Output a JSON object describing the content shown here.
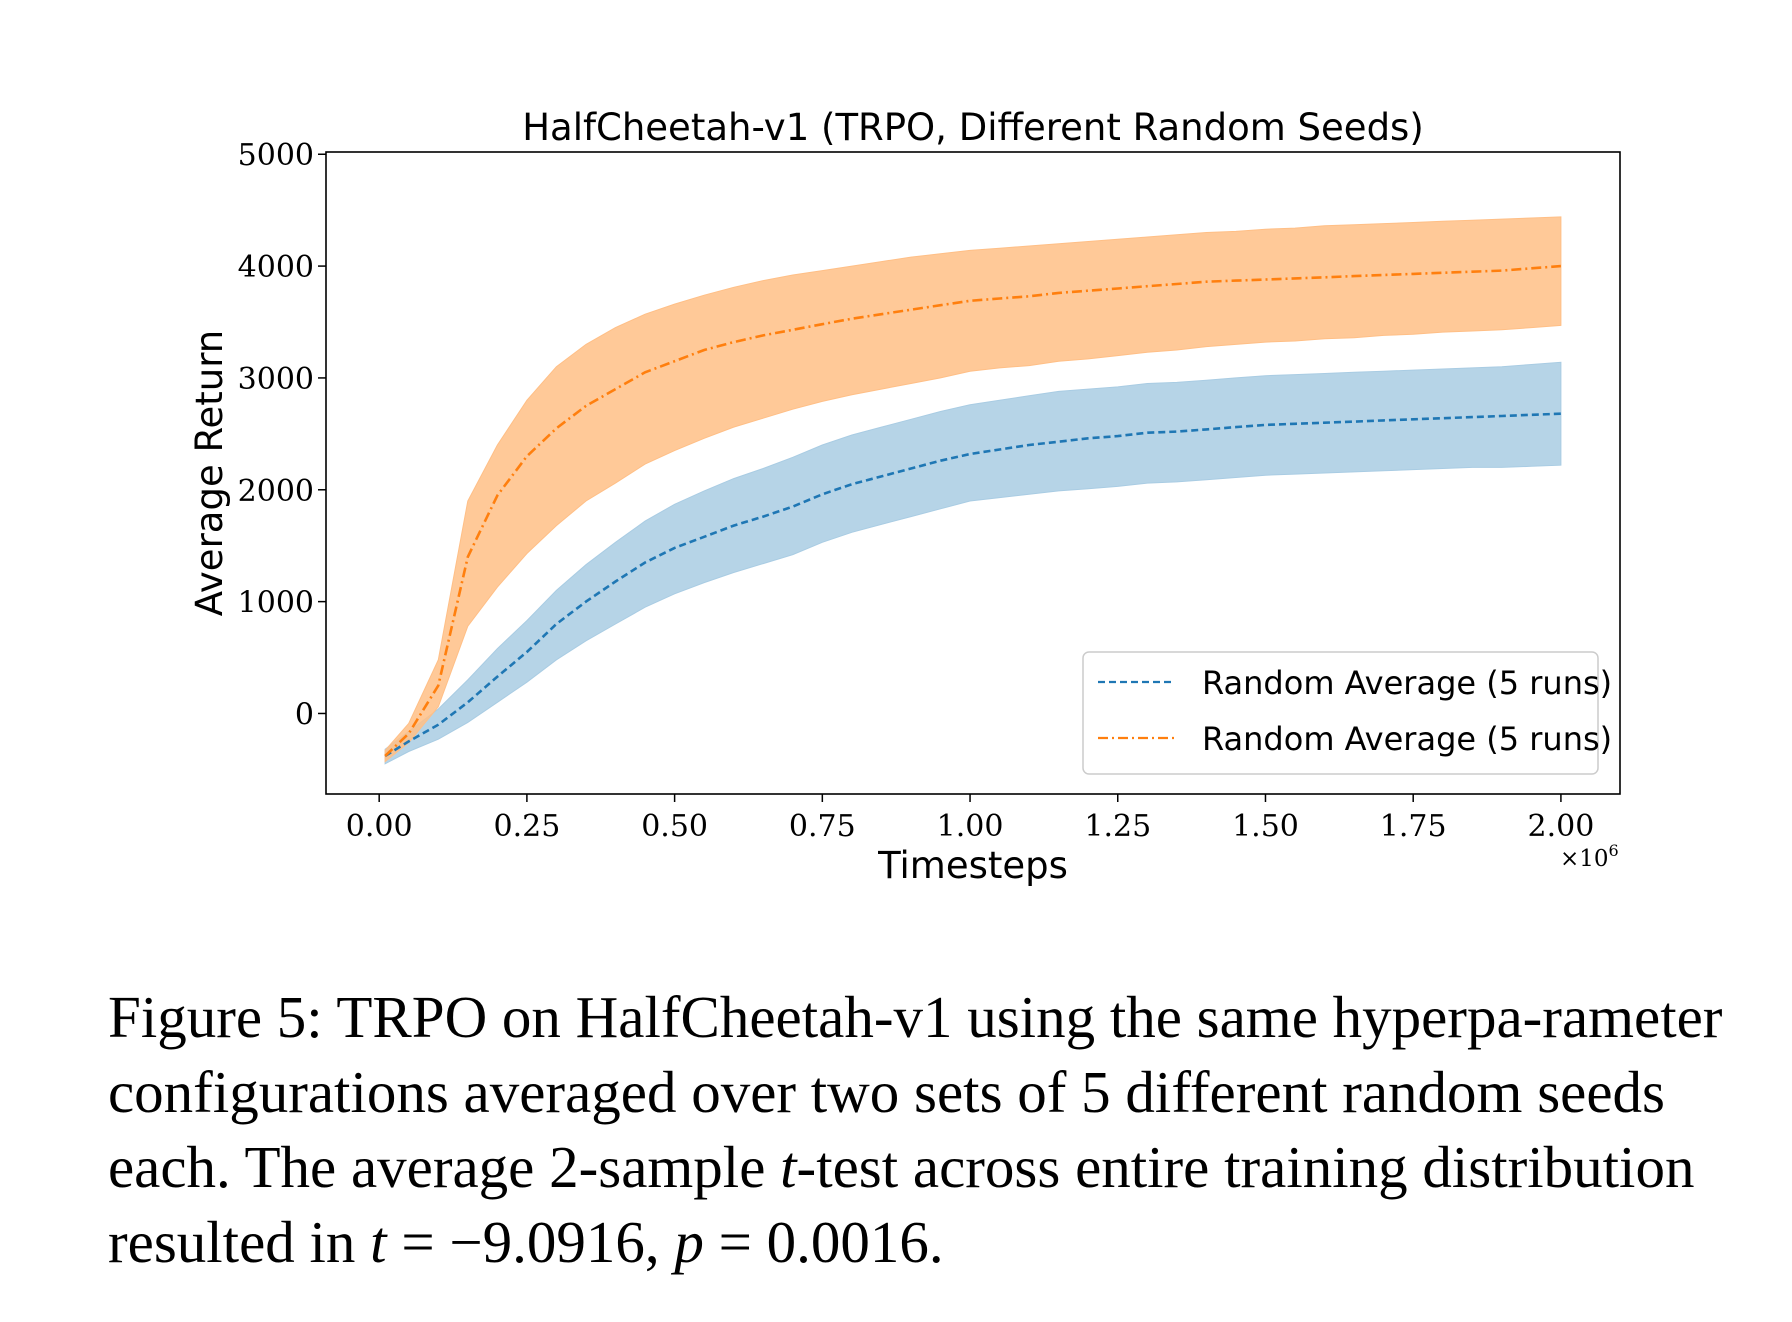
{
  "chart_data": {
    "type": "line",
    "title": "HalfCheetah-v1 (TRPO, Different Random Seeds)",
    "xlabel": "Timesteps",
    "ylabel": "Average Return",
    "x_multiplier_label": "×10",
    "x_multiplier_exp": "6",
    "xlim": [
      -0.09,
      2.1
    ],
    "ylim": [
      -720,
      5020
    ],
    "xticks": [
      0.0,
      0.25,
      0.5,
      0.75,
      1.0,
      1.25,
      1.5,
      1.75,
      2.0
    ],
    "xtick_labels": [
      "0.00",
      "0.25",
      "0.50",
      "0.75",
      "1.00",
      "1.25",
      "1.50",
      "1.75",
      "2.00"
    ],
    "yticks": [
      0,
      1000,
      2000,
      3000,
      4000,
      5000
    ],
    "ytick_labels": [
      "0",
      "1000",
      "2000",
      "3000",
      "4000",
      "5000"
    ],
    "grid": false,
    "legend_position": "lower-right",
    "x": [
      0.01,
      0.05,
      0.1,
      0.15,
      0.2,
      0.25,
      0.3,
      0.35,
      0.4,
      0.45,
      0.5,
      0.55,
      0.6,
      0.65,
      0.7,
      0.75,
      0.8,
      0.85,
      0.9,
      0.95,
      1.0,
      1.05,
      1.1,
      1.15,
      1.2,
      1.25,
      1.3,
      1.35,
      1.4,
      1.45,
      1.5,
      1.55,
      1.6,
      1.65,
      1.7,
      1.75,
      1.8,
      1.85,
      1.9,
      1.95,
      2.0
    ],
    "series": [
      {
        "name": "Random Average (5 runs)",
        "color": "#1f77b4",
        "fill_color": "#a9cce3",
        "line_style": "dashed",
        "values": [
          -380,
          -250,
          -100,
          100,
          330,
          550,
          800,
          1000,
          1180,
          1350,
          1480,
          1580,
          1680,
          1760,
          1850,
          1960,
          2050,
          2120,
          2190,
          2260,
          2320,
          2360,
          2400,
          2430,
          2460,
          2480,
          2510,
          2520,
          2540,
          2560,
          2580,
          2590,
          2600,
          2610,
          2620,
          2630,
          2640,
          2650,
          2660,
          2670,
          2680
        ],
        "lower": [
          -450,
          -340,
          -230,
          -80,
          100,
          280,
          480,
          650,
          800,
          950,
          1070,
          1170,
          1260,
          1340,
          1420,
          1530,
          1620,
          1690,
          1760,
          1830,
          1900,
          1930,
          1960,
          1990,
          2010,
          2030,
          2060,
          2070,
          2090,
          2110,
          2130,
          2140,
          2150,
          2160,
          2170,
          2180,
          2190,
          2200,
          2200,
          2210,
          2220
        ],
        "upper": [
          -320,
          -160,
          40,
          300,
          580,
          830,
          1100,
          1330,
          1530,
          1720,
          1870,
          1990,
          2100,
          2190,
          2290,
          2400,
          2490,
          2560,
          2630,
          2700,
          2760,
          2800,
          2840,
          2880,
          2900,
          2920,
          2950,
          2960,
          2980,
          3000,
          3020,
          3030,
          3040,
          3050,
          3060,
          3070,
          3080,
          3090,
          3100,
          3120,
          3140
        ]
      },
      {
        "name": "Random Average (5 runs)",
        "color": "#ff7f0e",
        "fill_color": "#ffbf86",
        "line_style": "dashdot",
        "values": [
          -380,
          -180,
          250,
          1400,
          1950,
          2300,
          2550,
          2750,
          2900,
          3050,
          3150,
          3250,
          3320,
          3380,
          3430,
          3480,
          3530,
          3570,
          3610,
          3650,
          3690,
          3710,
          3730,
          3760,
          3780,
          3800,
          3820,
          3840,
          3860,
          3870,
          3880,
          3890,
          3900,
          3910,
          3920,
          3930,
          3940,
          3950,
          3960,
          3980,
          4000
        ],
        "lower": [
          -430,
          -260,
          60,
          780,
          1130,
          1430,
          1680,
          1900,
          2060,
          2230,
          2350,
          2460,
          2560,
          2640,
          2720,
          2790,
          2850,
          2900,
          2950,
          3000,
          3060,
          3090,
          3110,
          3150,
          3170,
          3200,
          3230,
          3250,
          3280,
          3300,
          3320,
          3330,
          3350,
          3360,
          3380,
          3390,
          3410,
          3420,
          3430,
          3450,
          3470
        ],
        "upper": [
          -330,
          -90,
          480,
          1900,
          2400,
          2800,
          3100,
          3300,
          3450,
          3570,
          3660,
          3740,
          3810,
          3870,
          3920,
          3960,
          4000,
          4040,
          4080,
          4110,
          4140,
          4160,
          4180,
          4200,
          4220,
          4240,
          4260,
          4280,
          4300,
          4310,
          4330,
          4340,
          4360,
          4370,
          4380,
          4390,
          4400,
          4410,
          4420,
          4430,
          4440
        ]
      }
    ]
  },
  "caption": {
    "part1": "Figure 5: TRPO on HalfCheetah-v1 using the same hyperpa-rameter configurations averaged over two sets of 5 different random seeds each. The average 2-sample ",
    "t1": "t",
    "part2": "-test across entire training distribution resulted in ",
    "t2": "t",
    "eq1": " = −9.0916, ",
    "p": "p",
    "eq2": " = 0.0016."
  }
}
